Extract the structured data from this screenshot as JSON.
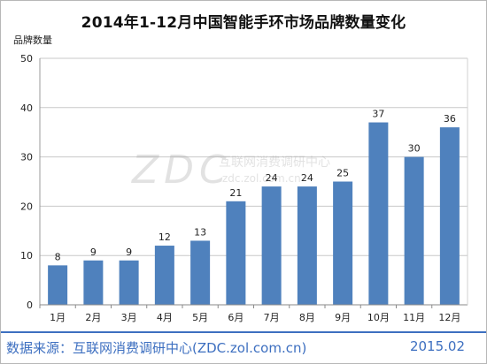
{
  "title": "2014年1-12月中国智能手环市场品牌数量变化",
  "footer": {
    "source": "数据来源：互联网消费调研中心(ZDC.zol.com.cn)",
    "date": "2015.02"
  },
  "watermark": {
    "logo": "ZDC",
    "line1": "互联网消费调研中心",
    "line2": "zdc.zol.com.cn"
  },
  "colors": {
    "bar": "#4f81bd",
    "footer": "#3d6fc0",
    "grid": "#c8c8c8"
  },
  "chart_data": {
    "type": "bar",
    "ylabel": "品牌数量",
    "xlabel": "",
    "ylim": [
      0,
      50
    ],
    "yticks": [
      0,
      10,
      20,
      30,
      40,
      50
    ],
    "grid": true,
    "legend": "none",
    "categories": [
      "1月",
      "2月",
      "3月",
      "4月",
      "5月",
      "6月",
      "7月",
      "8月",
      "9月",
      "10月",
      "11月",
      "12月"
    ],
    "values": [
      8,
      9,
      9,
      12,
      13,
      21,
      24,
      24,
      25,
      37,
      30,
      36
    ]
  }
}
